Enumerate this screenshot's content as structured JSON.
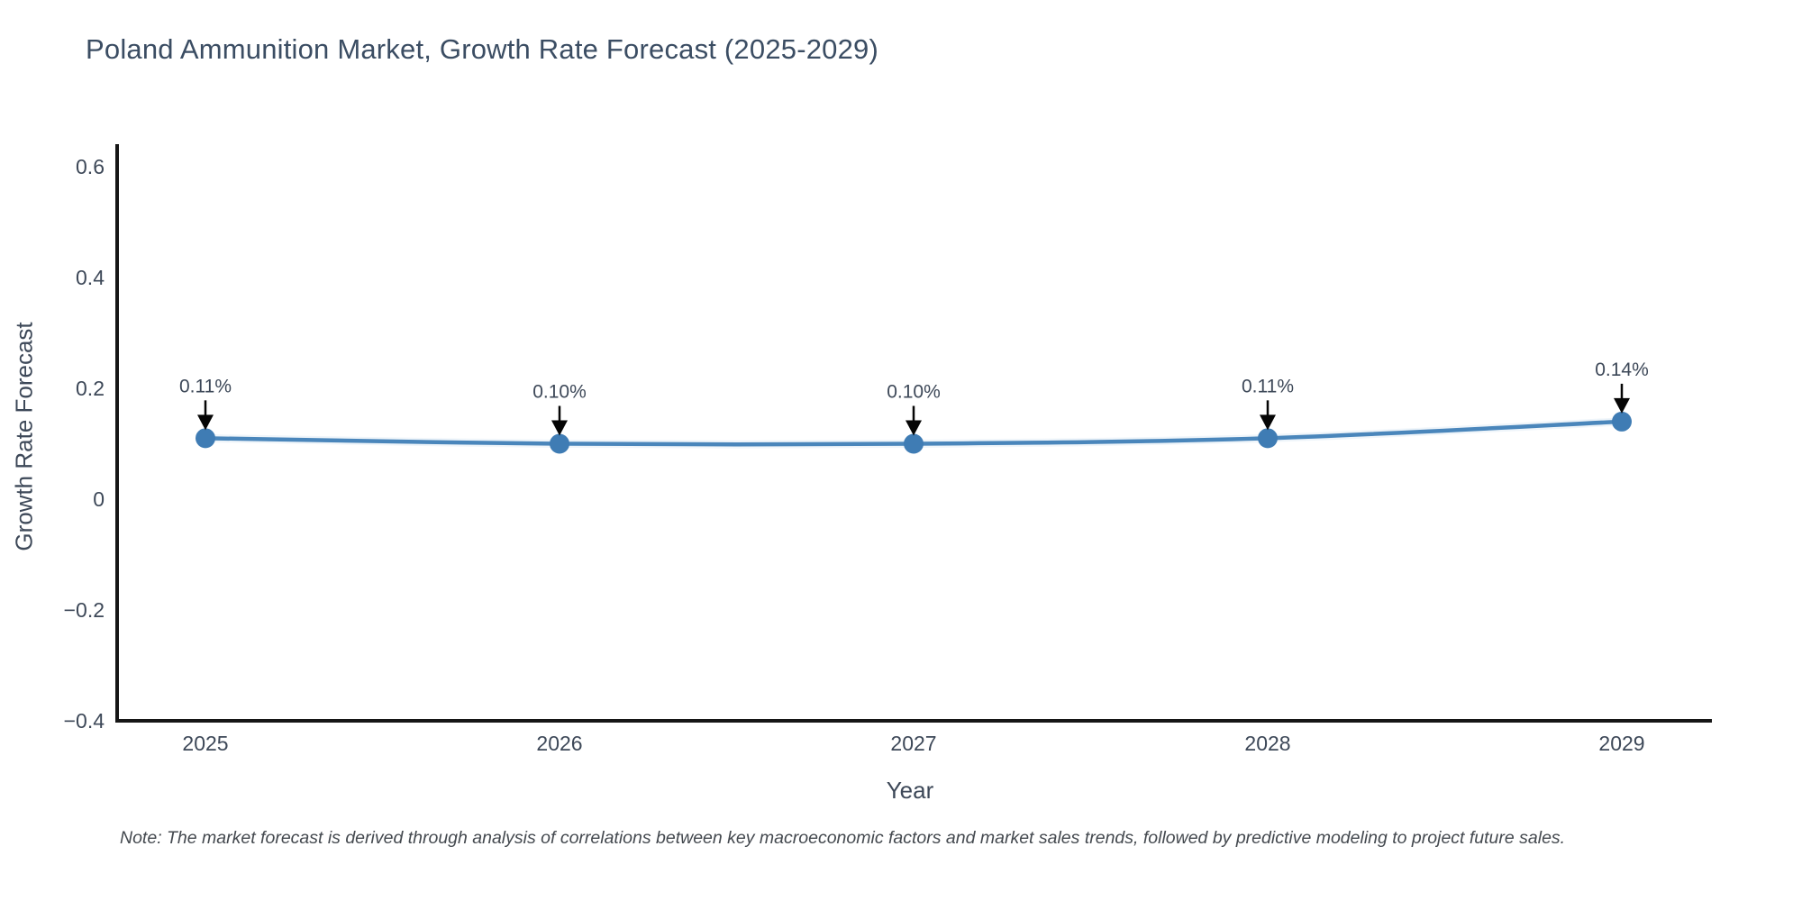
{
  "figure": {
    "note": "Note: The market forecast is derived through analysis of correlations between key macroeconomic factors and market sales trends, followed by predictive modeling to project future sales."
  },
  "chart_data": {
    "type": "line",
    "title": "Poland Ammunition Market, Growth Rate Forecast (2025-2029)",
    "xlabel": "Year",
    "ylabel": "Growth Rate Forecast",
    "categories": [
      "2025",
      "2026",
      "2027",
      "2028",
      "2029"
    ],
    "series": [
      {
        "name": "Growth Rate Forecast",
        "values": [
          0.11,
          0.1,
          0.1,
          0.11,
          0.14
        ]
      }
    ],
    "point_labels": [
      "0.11%",
      "0.10%",
      "0.10%",
      "0.11%",
      "0.14%"
    ],
    "ylim": [
      -0.4,
      0.6
    ],
    "y_tick_values": [
      0.6,
      0.4,
      0.2,
      0,
      -0.2,
      -0.4
    ],
    "y_tick_labels": [
      "0.6",
      "0.4",
      "0.2",
      "0",
      "−0.2",
      "−0.4"
    ],
    "grid": false,
    "legend": "none",
    "annotations": "down-arrows from value labels to markers",
    "colors": {
      "line": "#4a86bb",
      "line_halo": "#dce9f5",
      "marker": "#3f7cb4",
      "axis": "#161616",
      "tick_text": "#3d4858",
      "label_text": "#3d4858",
      "title": "#3b4d63",
      "arrow": "#050505",
      "note": "#44494f"
    }
  }
}
